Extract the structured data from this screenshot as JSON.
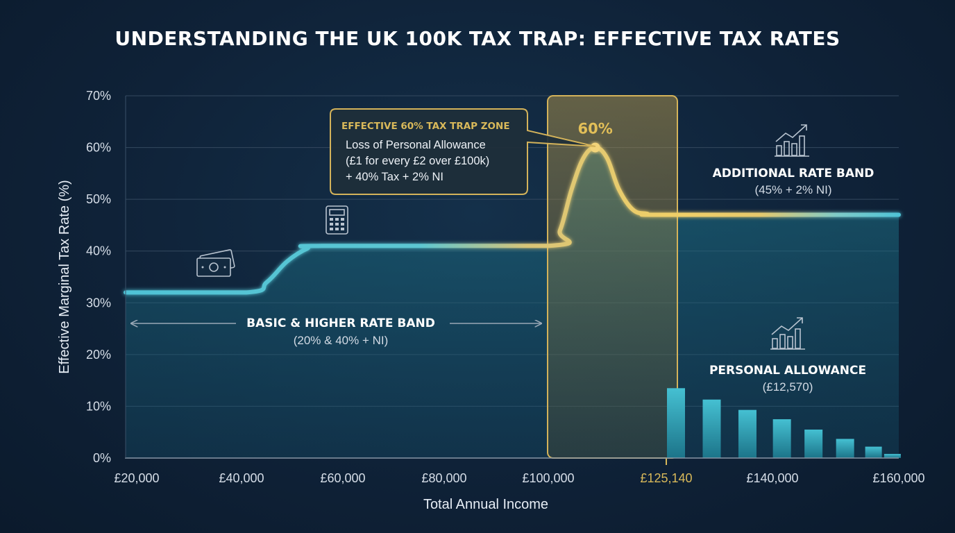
{
  "chart_data": {
    "type": "line",
    "title": "UNDERSTANDING THE UK 100K TAX TRAP: EFFECTIVE TAX RATES",
    "xlabel": "Total Annual Income",
    "ylabel": "Effective Marginal Tax Rate (%)",
    "ylim": [
      0,
      70
    ],
    "xlim": [
      20000,
      160000
    ],
    "y_ticks": [
      "0%",
      "10%",
      "20%",
      "30%",
      "40%",
      "50%",
      "60%",
      "70%"
    ],
    "x_ticks": [
      {
        "value": 20000,
        "label": "£20,000"
      },
      {
        "value": 40000,
        "label": "£40,000"
      },
      {
        "value": 60000,
        "label": "£60,000"
      },
      {
        "value": 80000,
        "label": "£80,000"
      },
      {
        "value": 100000,
        "label": "£100,000"
      },
      {
        "value": 125140,
        "label": "£125,140",
        "highlight": true
      },
      {
        "value": 140000,
        "label": "£140,000"
      },
      {
        "value": 160000,
        "label": "£160,000"
      }
    ],
    "grid": true,
    "series": [
      {
        "x": [
          20000,
          41000,
          45000,
          49000,
          53000,
          56000,
          100000,
          102500,
          105000,
          107500,
          110000,
          112500,
          115000,
          118000,
          121000,
          125140,
          160000
        ],
        "y": [
          32,
          32,
          34,
          38,
          40.5,
          41,
          41,
          44,
          52,
          58,
          60,
          58,
          52,
          48,
          47.2,
          47,
          47
        ]
      }
    ],
    "trap_zone": {
      "x_start": 100000,
      "x_end": 125140,
      "peak_x": 110000,
      "peak_value": 60,
      "peak_label": "60%"
    },
    "allowance_bars": {
      "x": [
        126500,
        131500,
        136500,
        141500,
        146500,
        151500,
        156000,
        159000
      ],
      "values": [
        13.5,
        11.3,
        9.3,
        7.5,
        5.5,
        3.7,
        2.2,
        0.8
      ]
    },
    "annotations": {
      "callout": {
        "title": "EFFECTIVE 60% TAX TRAP ZONE",
        "lines": [
          "Loss of Personal Allowance",
          "(£1 for every £2 over £100k)",
          "+ 40% Tax + 2% NI"
        ]
      },
      "basic_band": {
        "title": "BASIC & HIGHER RATE BAND",
        "subtitle": "(20% & 40% + NI)"
      },
      "additional_band": {
        "title": "ADDITIONAL RATE BAND",
        "subtitle": "(45% + 2% NI)"
      },
      "personal_allowance": {
        "title": "PERSONAL ALLOWANCE",
        "subtitle": "(£12,570)"
      }
    }
  },
  "colors": {
    "line_teal": "#4fc3d6",
    "line_gold": "#e8c766",
    "trap_gold": "#d4b35a",
    "area_teal": "#1c6f82",
    "bar_teal": "#3bb0c4",
    "background": "#0f2238"
  },
  "icons": [
    "money-icon",
    "calculator-icon",
    "bar-chart-growth-icon"
  ]
}
